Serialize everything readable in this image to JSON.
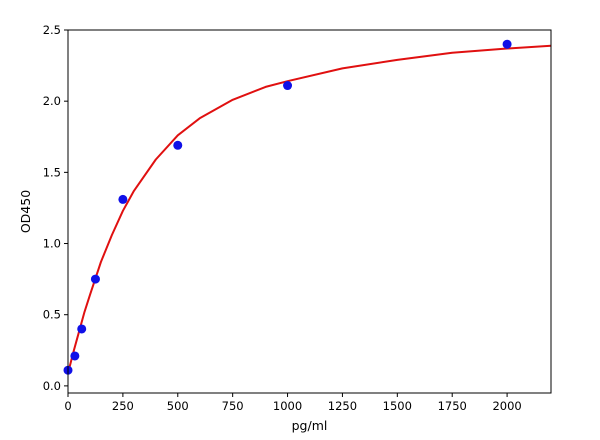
{
  "chart_data": {
    "type": "scatter",
    "title": "",
    "xlabel": "pg/ml",
    "ylabel": "OD450",
    "xlim": [
      0,
      2200
    ],
    "ylim": [
      -0.05,
      2.5
    ],
    "x_ticks": [
      0,
      250,
      500,
      750,
      1000,
      1250,
      1500,
      1750,
      2000
    ],
    "y_ticks": [
      0.0,
      0.5,
      1.0,
      1.5,
      2.0,
      2.5
    ],
    "x_tick_labels": [
      "0",
      "250",
      "500",
      "750",
      "1000",
      "1250",
      "1500",
      "1750",
      "2000"
    ],
    "y_tick_labels": [
      "0.0",
      "0.5",
      "1.0",
      "1.5",
      "2.0",
      "2.5"
    ],
    "grid": false,
    "series": [
      {
        "kind": "points",
        "color": "#1010e8",
        "x": [
          0,
          31.25,
          62.5,
          125,
          250,
          500,
          1000,
          2000
        ],
        "y": [
          0.11,
          0.21,
          0.4,
          0.75,
          1.31,
          1.69,
          2.11,
          2.4
        ]
      },
      {
        "kind": "fit-curve",
        "color": "#e01010",
        "x": [
          0,
          25,
          50,
          75,
          100,
          150,
          200,
          250,
          300,
          400,
          500,
          600,
          750,
          900,
          1000,
          1250,
          1500,
          1750,
          2000,
          2200
        ],
        "y": [
          0.09,
          0.24,
          0.38,
          0.52,
          0.64,
          0.87,
          1.06,
          1.23,
          1.37,
          1.59,
          1.76,
          1.88,
          2.01,
          2.1,
          2.14,
          2.23,
          2.29,
          2.34,
          2.37,
          2.39
        ]
      }
    ]
  }
}
